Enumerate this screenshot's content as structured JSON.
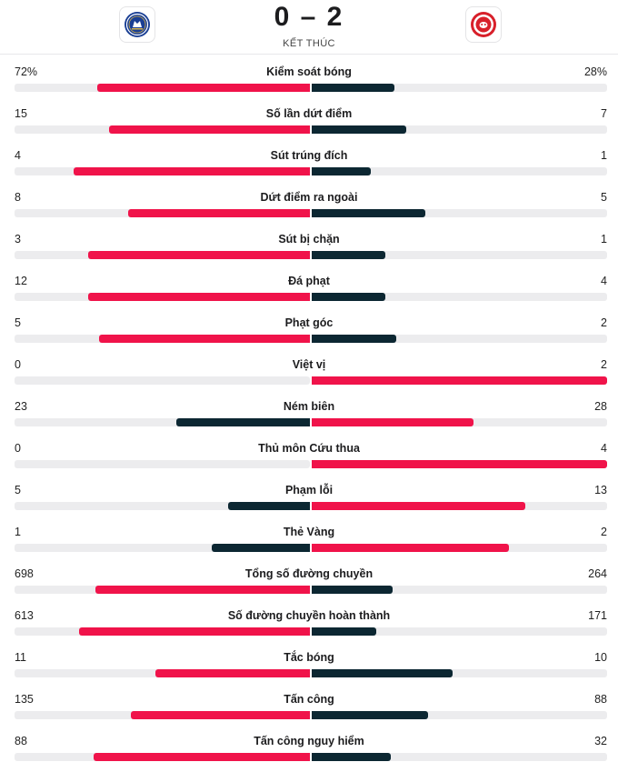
{
  "match": {
    "home_team": "Chelsea",
    "away_team": "Brentford",
    "score": "0 – 2",
    "status": "KẾT THÚC"
  },
  "colors": {
    "leader": "#f0134a",
    "trailer": "#0c2732",
    "track": "#ececee"
  },
  "stats": [
    {
      "label": "Kiểm soát bóng",
      "home": "72%",
      "away": "28%",
      "home_val": 72,
      "away_val": 28,
      "home_fill": 0.72,
      "away_fill": 0.28
    },
    {
      "label": "Số lần dứt điểm",
      "home": "15",
      "away": "7",
      "home_val": 15,
      "away_val": 7,
      "home_fill": 0.68,
      "away_fill": 0.32
    },
    {
      "label": "Sút trúng đích",
      "home": "4",
      "away": "1",
      "home_val": 4,
      "away_val": 1,
      "home_fill": 0.8,
      "away_fill": 0.2
    },
    {
      "label": "Dứt điểm ra ngoài",
      "home": "8",
      "away": "5",
      "home_val": 8,
      "away_val": 5,
      "home_fill": 0.615,
      "away_fill": 0.385
    },
    {
      "label": "Sút bị chặn",
      "home": "3",
      "away": "1",
      "home_val": 3,
      "away_val": 1,
      "home_fill": 0.75,
      "away_fill": 0.25
    },
    {
      "label": "Đá phạt",
      "home": "12",
      "away": "4",
      "home_val": 12,
      "away_val": 4,
      "home_fill": 0.75,
      "away_fill": 0.25
    },
    {
      "label": "Phạt góc",
      "home": "5",
      "away": "2",
      "home_val": 5,
      "away_val": 2,
      "home_fill": 0.714,
      "away_fill": 0.286
    },
    {
      "label": "Việt vị",
      "home": "0",
      "away": "2",
      "home_val": 0,
      "away_val": 2,
      "home_fill": 0,
      "away_fill": 1
    },
    {
      "label": "Ném biên",
      "home": "23",
      "away": "28",
      "home_val": 23,
      "away_val": 28,
      "home_fill": 0.451,
      "away_fill": 0.549
    },
    {
      "label": "Thủ môn Cứu thua",
      "home": "0",
      "away": "4",
      "home_val": 0,
      "away_val": 4,
      "home_fill": 0,
      "away_fill": 1
    },
    {
      "label": "Phạm lỗi",
      "home": "5",
      "away": "13",
      "home_val": 5,
      "away_val": 13,
      "home_fill": 0.278,
      "away_fill": 0.722
    },
    {
      "label": "Thẻ Vàng",
      "home": "1",
      "away": "2",
      "home_val": 1,
      "away_val": 2,
      "home_fill": 0.333,
      "away_fill": 0.667
    },
    {
      "label": "Tổng số đường chuyền",
      "home": "698",
      "away": "264",
      "home_val": 698,
      "away_val": 264,
      "home_fill": 0.726,
      "away_fill": 0.274
    },
    {
      "label": "Số đường chuyền hoàn thành",
      "home": "613",
      "away": "171",
      "home_val": 613,
      "away_val": 171,
      "home_fill": 0.782,
      "away_fill": 0.218
    },
    {
      "label": "Tắc bóng",
      "home": "11",
      "away": "10",
      "home_val": 11,
      "away_val": 10,
      "home_fill": 0.524,
      "away_fill": 0.476
    },
    {
      "label": "Tấn công",
      "home": "135",
      "away": "88",
      "home_val": 135,
      "away_val": 88,
      "home_fill": 0.605,
      "away_fill": 0.395
    },
    {
      "label": "Tấn công nguy hiểm",
      "home": "88",
      "away": "32",
      "home_val": 88,
      "away_val": 32,
      "home_fill": 0.733,
      "away_fill": 0.267
    }
  ]
}
